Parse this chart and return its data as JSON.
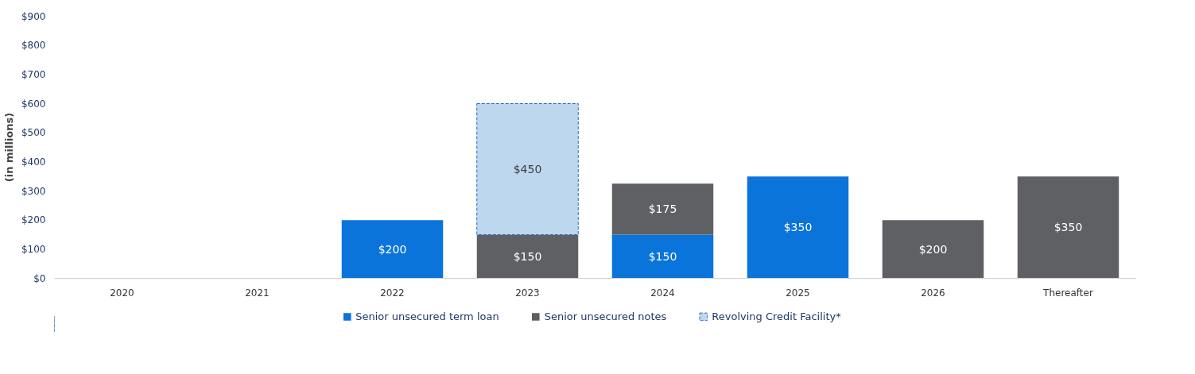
{
  "chart_data": {
    "type": "bar",
    "stacked": true,
    "ylabel": "(in millions)",
    "categories": [
      "2020",
      "2021",
      "2022",
      "2023",
      "2024",
      "2025",
      "2026",
      "Thereafter"
    ],
    "series": [
      {
        "name": "Senior unsecured term loan",
        "color": "#0a74da",
        "values": [
          null,
          null,
          200,
          null,
          150,
          350,
          null,
          null
        ],
        "value_labels": [
          null,
          null,
          "$200",
          null,
          "$150",
          "$350",
          null,
          null
        ]
      },
      {
        "name": "Senior unsecured notes",
        "color": "#5f6064",
        "values": [
          null,
          null,
          null,
          150,
          175,
          null,
          200,
          350
        ],
        "value_labels": [
          null,
          null,
          null,
          "$150",
          "$175",
          null,
          "$200",
          "$350"
        ]
      },
      {
        "name": "Revolving Credit Facility*",
        "color": "#bdd7ee",
        "line_style": "dashed",
        "values": [
          null,
          null,
          null,
          450,
          null,
          null,
          null,
          null
        ],
        "value_labels": [
          null,
          null,
          null,
          "$450",
          null,
          null,
          null,
          null
        ]
      }
    ],
    "ylim": [
      0,
      900
    ],
    "yticks": [
      {
        "value": 0,
        "label": "$0"
      },
      {
        "value": 100,
        "label": "$100"
      },
      {
        "value": 200,
        "label": "$200"
      },
      {
        "value": 300,
        "label": "$300"
      },
      {
        "value": 400,
        "label": "$400"
      },
      {
        "value": 500,
        "label": "$500"
      },
      {
        "value": 600,
        "label": "$600"
      },
      {
        "value": 700,
        "label": "$700"
      },
      {
        "value": 800,
        "label": "$800"
      },
      {
        "value": 900,
        "label": "$900"
      }
    ],
    "grid": false,
    "legend": "bottom"
  }
}
